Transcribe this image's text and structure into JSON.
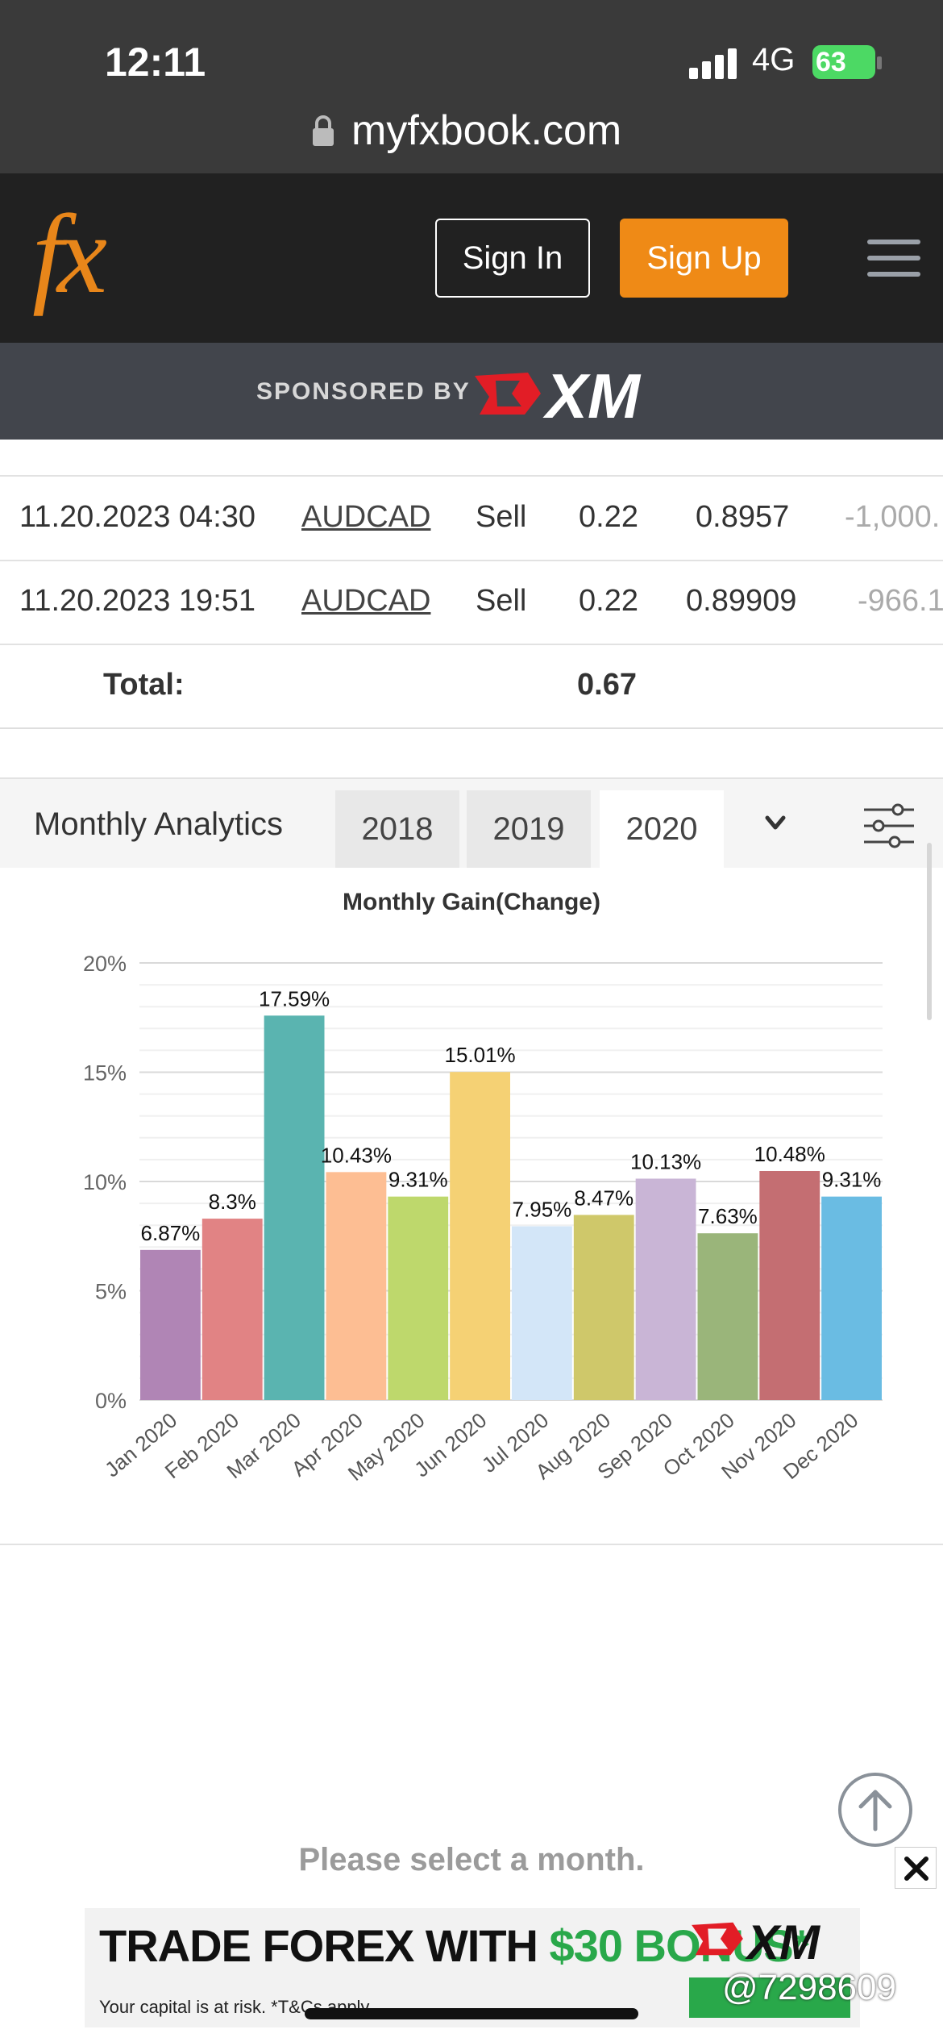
{
  "status_bar": {
    "time": "12:11",
    "network": "4G",
    "battery": "63"
  },
  "browser": {
    "url": "myfxbook.com"
  },
  "header": {
    "logo": "fx",
    "sign_in": "Sign In",
    "sign_up": "Sign Up"
  },
  "sponsor": {
    "label": "SPONSORED BY",
    "brand": "XM"
  },
  "trades": [
    {
      "date": "11.20.2023 04:30",
      "symbol": "AUDCAD",
      "action": "Sell",
      "lots": "0.22",
      "price": "0.8957",
      "profit": "-1,000."
    },
    {
      "date": "11.20.2023 19:51",
      "symbol": "AUDCAD",
      "action": "Sell",
      "lots": "0.22",
      "price": "0.89909",
      "profit": "-966.1"
    }
  ],
  "total": {
    "label": "Total:",
    "value": "0.67"
  },
  "analytics": {
    "title": "Monthly Analytics",
    "years": [
      "2018",
      "2019",
      "2020"
    ],
    "selected_year": "2020"
  },
  "chart_data": {
    "type": "bar",
    "title": "Monthly Gain(Change)",
    "categories": [
      "Jan 2020",
      "Feb 2020",
      "Mar 2020",
      "Apr 2020",
      "May 2020",
      "Jun 2020",
      "Jul 2020",
      "Aug 2020",
      "Sep 2020",
      "Oct 2020",
      "Nov 2020",
      "Dec 2020"
    ],
    "values": [
      6.87,
      8.3,
      17.59,
      10.43,
      9.31,
      15.01,
      7.95,
      8.47,
      10.13,
      7.63,
      10.48,
      9.31
    ],
    "labels": [
      "6.87%",
      "8.3%",
      "17.59%",
      "10.43%",
      "9.31%",
      "15.01%",
      "7.95%",
      "8.47%",
      "10.13%",
      "7.63%",
      "10.48%",
      "9.31%"
    ],
    "colors": [
      "#b085b5",
      "#e18384",
      "#5ab4b0",
      "#fdbe93",
      "#bed86c",
      "#f5d174",
      "#d3e6f8",
      "#cfc86a",
      "#c9b5d6",
      "#9ab57a",
      "#c46e72",
      "#6abce3"
    ],
    "yticks": [
      "0%",
      "5%",
      "10%",
      "15%",
      "20%"
    ],
    "ylim": [
      0,
      20
    ],
    "grid": true,
    "xlabel": "",
    "ylabel": ""
  },
  "empty_state": "Please select a month.",
  "ad": {
    "headline_prefix": "TRADE FOREX WITH ",
    "headline_bonus": "$30 BONUS",
    "headline_suffix": "*",
    "disclaimer": "Your capital is at risk. *T&Cs apply",
    "brand": "XM"
  },
  "watermark": "@7298609"
}
